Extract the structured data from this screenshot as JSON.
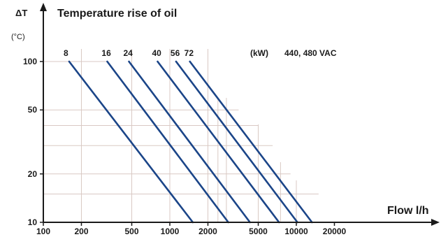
{
  "chart_data": {
    "type": "line",
    "title": "Temperature rise of oil",
    "ylabel": "ΔT",
    "yunit": "(°C)",
    "xlabel": "Flow l/h",
    "xscale": "log",
    "yscale": "log",
    "xlim": [
      100,
      40000
    ],
    "ylim": [
      10,
      100
    ],
    "xticks": [
      {
        "value": 100,
        "label": "100"
      },
      {
        "value": 200,
        "label": "200"
      },
      {
        "value": 500,
        "label": "500"
      },
      {
        "value": 1000,
        "label": "1000"
      },
      {
        "value": 2000,
        "label": "2000"
      },
      {
        "value": 5000,
        "label": "5000"
      },
      {
        "value": 10000,
        "label": "10000"
      },
      {
        "value": 20000,
        "label": "20000"
      }
    ],
    "yticks": [
      {
        "value": 10,
        "label": "10"
      },
      {
        "value": 20,
        "label": "20"
      },
      {
        "value": 50,
        "label": "50"
      },
      {
        "value": 100,
        "label": "100"
      }
    ],
    "grid": true,
    "series_unit": "(kW)",
    "voltage_note": "440, 480 VAC",
    "series": [
      {
        "name": "8",
        "points": [
          {
            "x": 160,
            "y": 100
          },
          {
            "x": 1520,
            "y": 10
          }
        ]
      },
      {
        "name": "16",
        "points": [
          {
            "x": 320,
            "y": 100
          },
          {
            "x": 2900,
            "y": 10
          }
        ]
      },
      {
        "name": "24",
        "points": [
          {
            "x": 475,
            "y": 100
          },
          {
            "x": 4300,
            "y": 10
          }
        ]
      },
      {
        "name": "40",
        "points": [
          {
            "x": 800,
            "y": 100
          },
          {
            "x": 7300,
            "y": 10
          }
        ]
      },
      {
        "name": "56",
        "points": [
          {
            "x": 1120,
            "y": 100
          },
          {
            "x": 10200,
            "y": 10
          }
        ]
      },
      {
        "name": "72",
        "points": [
          {
            "x": 1440,
            "y": 100
          },
          {
            "x": 13300,
            "y": 10
          }
        ]
      }
    ],
    "colors": {
      "series": "#1b4588",
      "axis": "#1a1a1a",
      "grid": "#d9c9c4"
    }
  }
}
